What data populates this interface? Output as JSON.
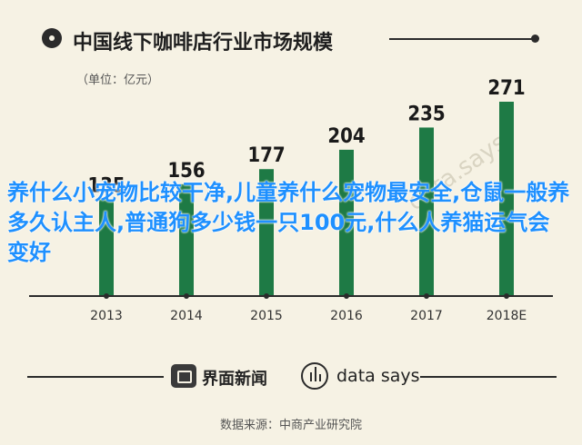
{
  "title": "中国线下咖啡店行业市场规模",
  "unit": "（单位：亿元）",
  "overlay_text": "养什么小宠物比较干净,儿童养什么宠物最安全,仓鼠一般养多久认主人,普通狗多少钱一只100元,什么人养猫运气会变好",
  "watermark": "data.says",
  "footer": {
    "brand1": "界面新闻",
    "brand2": "data says",
    "source": "数据来源：中商产业研究院"
  },
  "colors": {
    "bar": "#1e7a45",
    "background": "#f6f2e4",
    "axis": "#2b2b2b",
    "overlay": "#1e90ff"
  },
  "chart_data": {
    "type": "bar",
    "categories": [
      "2013",
      "2014",
      "2015",
      "2016",
      "2017",
      "2018E"
    ],
    "values": [
      135,
      156,
      177,
      204,
      235,
      271
    ],
    "title": "中国线下咖啡店行业市场规模",
    "ylabel": "（单位：亿元）",
    "xlabel": "",
    "grid": false,
    "ylim": [
      0,
      271
    ]
  }
}
